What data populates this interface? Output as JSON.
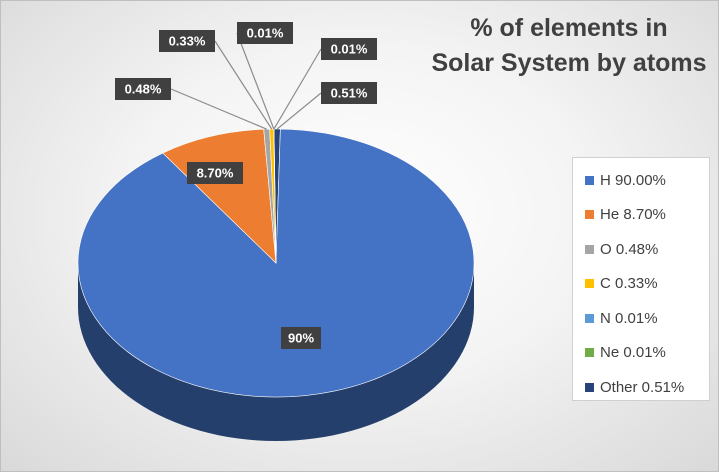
{
  "chart_data": {
    "type": "pie",
    "title": [
      "% of elements in",
      "Solar System by atoms"
    ],
    "categories": [
      "H",
      "He",
      "O",
      "C",
      "N",
      "Ne",
      "Other"
    ],
    "values": [
      90.0,
      8.7,
      0.48,
      0.33,
      0.01,
      0.01,
      0.51
    ],
    "colors": [
      "#4472c4",
      "#ed7d31",
      "#a5a5a5",
      "#ffc000",
      "#5b9bd5",
      "#70ad47",
      "#264478"
    ],
    "data_labels": [
      "90%",
      "8.70%",
      "0.48%",
      "0.33%",
      "0.01%",
      "0.01%",
      "0.51%"
    ],
    "legend_entries": [
      "H 90.00%",
      "He 8.70%",
      "O 0.48%",
      "C 0.33%",
      "N 0.01%",
      "Ne 0.01%",
      "Other 0.51%"
    ],
    "legend_placement": "right",
    "style": "3d-pie"
  }
}
